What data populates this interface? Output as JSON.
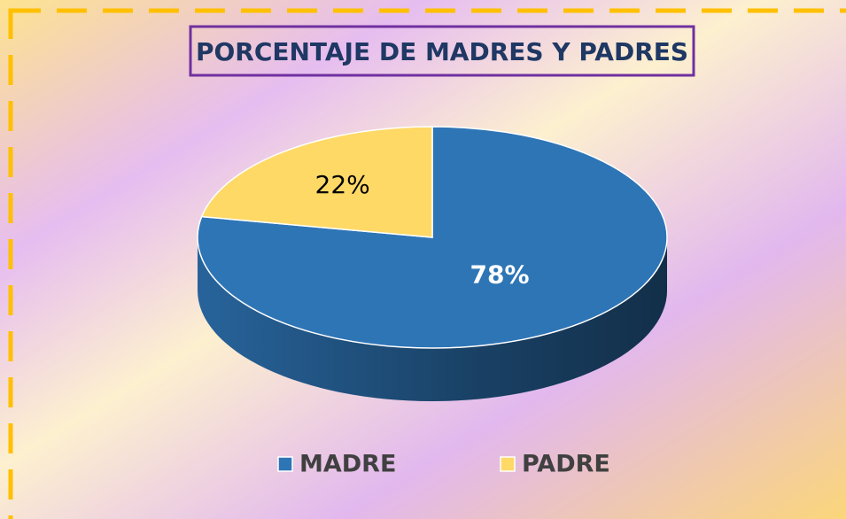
{
  "chart_data": {
    "type": "pie",
    "title": "PORCENTAJE DE MADRES Y PADRES",
    "categories": [
      "MADRE",
      "PADRE"
    ],
    "values": [
      78,
      22
    ],
    "value_labels": [
      "78%",
      "22%"
    ],
    "colors": [
      "#2e75b6",
      "#ffd966"
    ],
    "legend": "bottom"
  }
}
